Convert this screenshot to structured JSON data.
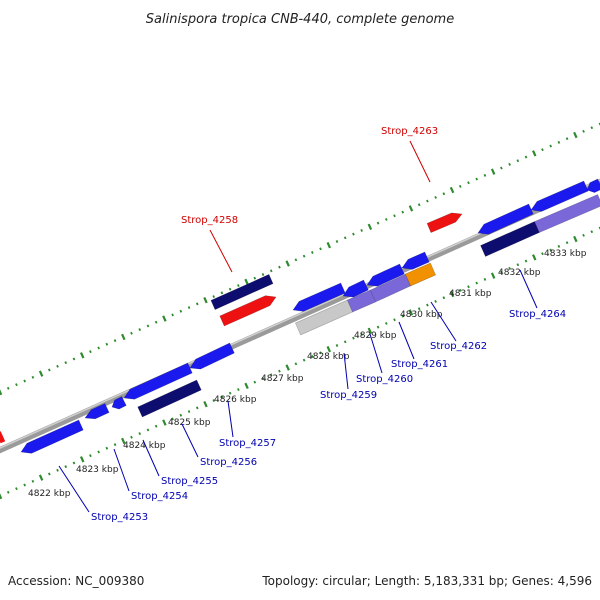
{
  "title": "Salinispora tropica CNB-440, complete genome",
  "accession_text": "Accession: NC_009380",
  "summary_text": "Topology: circular; Length: 5,183,331 bp; Genes: 4,596",
  "colors": {
    "background": "#ffffff",
    "backbone": "#888888",
    "dots": "#2e8b2e",
    "forward_label": "#d00000",
    "reverse_label": "#0000b0",
    "cds_blue": "#1a1aee",
    "cds_navy": "#0d0d70",
    "cds_violet": "#7a68d8",
    "cds_gray": "#c8c8c8",
    "cds_orange": "#f29100",
    "cds_red": "#ee1111",
    "tick_text": "#222222"
  },
  "scale_kbp": [
    "4822 kbp",
    "4823 kbp",
    "4824 kbp",
    "4825 kbp",
    "4826 kbp",
    "4827 kbp",
    "4828 kbp",
    "4829 kbp",
    "4830 kbp",
    "4831 kbp",
    "4832 kbp",
    "4833 kbp"
  ],
  "gene_labels": [
    {
      "text": "Strop_4258",
      "strand": "forward"
    },
    {
      "text": "Strop_4263",
      "strand": "forward"
    },
    {
      "text": "Strop_4253",
      "strand": "reverse"
    },
    {
      "text": "Strop_4254",
      "strand": "reverse"
    },
    {
      "text": "Strop_4255",
      "strand": "reverse"
    },
    {
      "text": "Strop_4256",
      "strand": "reverse"
    },
    {
      "text": "Strop_4257",
      "strand": "reverse"
    },
    {
      "text": "Strop_4259",
      "strand": "reverse"
    },
    {
      "text": "Strop_4260",
      "strand": "reverse"
    },
    {
      "text": "Strop_4261",
      "strand": "reverse"
    },
    {
      "text": "Strop_4262",
      "strand": "reverse"
    },
    {
      "text": "Strop_4264",
      "strand": "reverse"
    }
  ]
}
